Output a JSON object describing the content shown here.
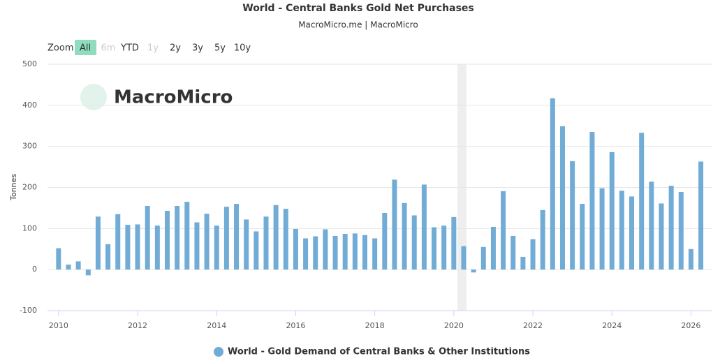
{
  "chart_data": {
    "type": "bar",
    "title": "World - Central Banks Gold Net Purchases",
    "subtitle": "MacroMicro.me | MacroMicro",
    "watermark": "MacroMicro",
    "zoom_label": "Zoom",
    "zoom_buttons": [
      "All",
      "6m",
      "YTD",
      "1y",
      "2y",
      "3y",
      "5y",
      "10y"
    ],
    "y_label": "Tonnes",
    "x": [
      2010,
      2010.25,
      2010.5,
      2010.75,
      2011,
      2011.25,
      2011.5,
      2011.75,
      2012,
      2012.25,
      2012.5,
      2012.75,
      2013,
      2013.25,
      2013.5,
      2013.75,
      2014,
      2014.25,
      2014.5,
      2014.75,
      2015,
      2015.25,
      2015.5,
      2015.75,
      2016,
      2016.25,
      2016.5,
      2016.75,
      2017,
      2017.25,
      2017.5,
      2017.75,
      2018,
      2018.25,
      2018.5,
      2018.75,
      2019,
      2019.25,
      2019.5,
      2019.75,
      2020,
      2020.25,
      2020.5,
      2020.75,
      2021,
      2021.25,
      2021.5,
      2021.75,
      2022,
      2022.25,
      2022.5,
      2022.75,
      2023,
      2023.25,
      2023.5,
      2023.75,
      2024,
      2024.25,
      2024.5,
      2024.75,
      2025,
      2025.25,
      2025.5,
      2025.75,
      2026,
      2026.25
    ],
    "series": [
      {
        "name": "World - Gold Demand of Central Banks & Other Institutions",
        "color": "#71acd6",
        "values": [
          52,
          12,
          20,
          -14,
          129,
          62,
          135,
          109,
          110,
          155,
          107,
          143,
          155,
          165,
          115,
          136,
          107,
          153,
          160,
          122,
          93,
          129,
          157,
          148,
          99,
          76,
          81,
          98,
          82,
          87,
          88,
          84,
          76,
          138,
          219,
          162,
          132,
          207,
          103,
          107,
          128,
          57,
          -7,
          55,
          104,
          191,
          82,
          31,
          74,
          145,
          417,
          349,
          264,
          160,
          335,
          198,
          286,
          192,
          178,
          333,
          214,
          161,
          204,
          189,
          50,
          263
        ]
      }
    ],
    "xlim": [
      2009.72,
      2026.54
    ],
    "xticks": [
      2010,
      2012,
      2014,
      2016,
      2018,
      2020,
      2022,
      2024,
      2026
    ],
    "ylim": [
      -100,
      500
    ],
    "yticks": [
      -100,
      0,
      100,
      200,
      300,
      400,
      500
    ],
    "grid": true
  }
}
